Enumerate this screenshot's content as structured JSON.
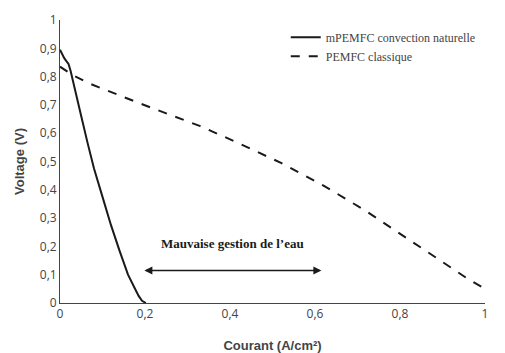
{
  "chart_data": {
    "type": "line",
    "xlabel": "Courant (A/cm²)",
    "ylabel": "Voltage (V)",
    "xlim": [
      0,
      1.0
    ],
    "ylim": [
      0,
      1.0
    ],
    "xticks": [
      0,
      {
        "value": 0.2,
        "label": "0,2"
      },
      {
        "value": 0.4,
        "label": "0,4"
      },
      {
        "value": 0.6,
        "label": "0,6"
      },
      {
        "value": 0.8,
        "label": "0,8"
      },
      1
    ],
    "yticks": [
      0,
      {
        "value": 0.1,
        "label": "0,1"
      },
      {
        "value": 0.2,
        "label": "0,2"
      },
      {
        "value": 0.3,
        "label": "0,3"
      },
      {
        "value": 0.4,
        "label": "0,4"
      },
      {
        "value": 0.5,
        "label": "0,5"
      },
      {
        "value": 0.6,
        "label": "0,6"
      },
      {
        "value": 0.7,
        "label": "0,7"
      },
      {
        "value": 0.8,
        "label": "0,8"
      },
      {
        "value": 0.9,
        "label": "0,9"
      },
      1
    ],
    "series": [
      {
        "name": "mPEMFC convection naturelle",
        "color": "#1a1a1a",
        "line_style": "solid",
        "x": [
          0.0,
          0.003,
          0.006,
          0.01,
          0.015,
          0.02,
          0.025,
          0.03,
          0.04,
          0.05,
          0.065,
          0.08,
          0.1,
          0.12,
          0.14,
          0.16,
          0.175,
          0.185,
          0.193,
          0.198,
          0.202
        ],
        "values": [
          0.895,
          0.885,
          0.875,
          0.865,
          0.855,
          0.845,
          0.82,
          0.79,
          0.73,
          0.66,
          0.565,
          0.475,
          0.375,
          0.275,
          0.185,
          0.1,
          0.055,
          0.025,
          0.008,
          0.002,
          0.0
        ]
      },
      {
        "name": "PEMFC classique",
        "color": "#1a1a1a",
        "line_style": "dashed",
        "x": [
          0.0,
          0.03,
          0.07,
          0.12,
          0.18,
          0.25,
          0.33,
          0.42,
          0.52,
          0.62,
          0.72,
          0.82,
          0.9,
          0.96,
          1.0
        ],
        "values": [
          0.835,
          0.805,
          0.775,
          0.745,
          0.71,
          0.67,
          0.625,
          0.565,
          0.495,
          0.415,
          0.325,
          0.225,
          0.145,
          0.085,
          0.05
        ]
      }
    ],
    "annotations": [
      {
        "text": "Mauvaise gestion de l’eau",
        "x": 0.405,
        "y": 0.175,
        "color": "#1a1a1a",
        "arrow": {
          "x_start": 0.195,
          "x_end": 0.615,
          "y": 0.115
        }
      }
    ],
    "legend": "upper right",
    "grid": false
  }
}
